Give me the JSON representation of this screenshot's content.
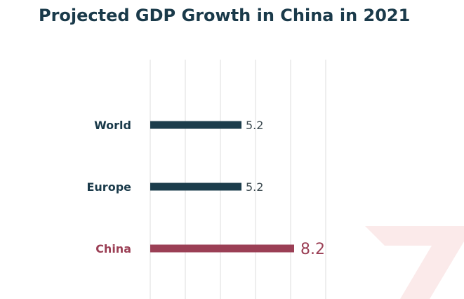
{
  "chart_data": {
    "type": "bar",
    "orientation": "horizontal",
    "title": "Projected GDP Growth in China in 2021",
    "categories": [
      "World",
      "Europe",
      "China"
    ],
    "values": [
      5.2,
      5.2,
      8.2
    ],
    "xlim": [
      0,
      10
    ],
    "grid": true,
    "legend": "none",
    "highlight_category": "China"
  },
  "colors": {
    "title": "#1a3a4a",
    "default_bar": "#1c3d4c",
    "highlight_bar": "#9b3f55",
    "default_label": "#1a3a4a",
    "value_label": "#3c4a50",
    "grid": "#e3e3e3",
    "watermark": "#fbeaea"
  }
}
